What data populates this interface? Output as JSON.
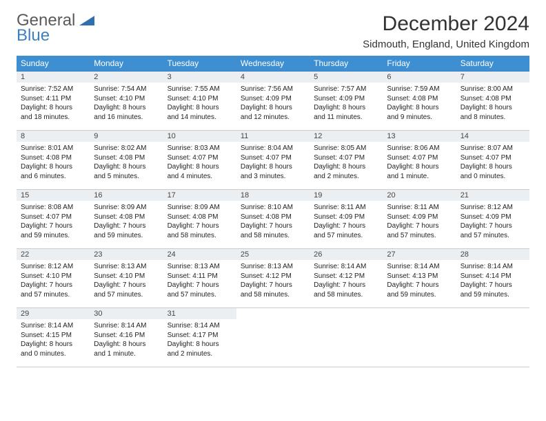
{
  "brand": {
    "part1": "General",
    "part2": "Blue"
  },
  "title": "December 2024",
  "location": "Sidmouth, England, United Kingdom",
  "colors": {
    "header_bg": "#3d8fd1",
    "header_text": "#ffffff",
    "row_border": "#3d7fbf",
    "daynum_bg": "#eceff1",
    "brand_gray": "#5a5a5a",
    "brand_blue": "#3d7fbf"
  },
  "day_headers": [
    "Sunday",
    "Monday",
    "Tuesday",
    "Wednesday",
    "Thursday",
    "Friday",
    "Saturday"
  ],
  "weeks": [
    [
      {
        "n": "1",
        "sr": "7:52 AM",
        "ss": "4:11 PM",
        "dl": "8 hours and 18 minutes."
      },
      {
        "n": "2",
        "sr": "7:54 AM",
        "ss": "4:10 PM",
        "dl": "8 hours and 16 minutes."
      },
      {
        "n": "3",
        "sr": "7:55 AM",
        "ss": "4:10 PM",
        "dl": "8 hours and 14 minutes."
      },
      {
        "n": "4",
        "sr": "7:56 AM",
        "ss": "4:09 PM",
        "dl": "8 hours and 12 minutes."
      },
      {
        "n": "5",
        "sr": "7:57 AM",
        "ss": "4:09 PM",
        "dl": "8 hours and 11 minutes."
      },
      {
        "n": "6",
        "sr": "7:59 AM",
        "ss": "4:08 PM",
        "dl": "8 hours and 9 minutes."
      },
      {
        "n": "7",
        "sr": "8:00 AM",
        "ss": "4:08 PM",
        "dl": "8 hours and 8 minutes."
      }
    ],
    [
      {
        "n": "8",
        "sr": "8:01 AM",
        "ss": "4:08 PM",
        "dl": "8 hours and 6 minutes."
      },
      {
        "n": "9",
        "sr": "8:02 AM",
        "ss": "4:08 PM",
        "dl": "8 hours and 5 minutes."
      },
      {
        "n": "10",
        "sr": "8:03 AM",
        "ss": "4:07 PM",
        "dl": "8 hours and 4 minutes."
      },
      {
        "n": "11",
        "sr": "8:04 AM",
        "ss": "4:07 PM",
        "dl": "8 hours and 3 minutes."
      },
      {
        "n": "12",
        "sr": "8:05 AM",
        "ss": "4:07 PM",
        "dl": "8 hours and 2 minutes."
      },
      {
        "n": "13",
        "sr": "8:06 AM",
        "ss": "4:07 PM",
        "dl": "8 hours and 1 minute."
      },
      {
        "n": "14",
        "sr": "8:07 AM",
        "ss": "4:07 PM",
        "dl": "8 hours and 0 minutes."
      }
    ],
    [
      {
        "n": "15",
        "sr": "8:08 AM",
        "ss": "4:07 PM",
        "dl": "7 hours and 59 minutes."
      },
      {
        "n": "16",
        "sr": "8:09 AM",
        "ss": "4:08 PM",
        "dl": "7 hours and 59 minutes."
      },
      {
        "n": "17",
        "sr": "8:09 AM",
        "ss": "4:08 PM",
        "dl": "7 hours and 58 minutes."
      },
      {
        "n": "18",
        "sr": "8:10 AM",
        "ss": "4:08 PM",
        "dl": "7 hours and 58 minutes."
      },
      {
        "n": "19",
        "sr": "8:11 AM",
        "ss": "4:09 PM",
        "dl": "7 hours and 57 minutes."
      },
      {
        "n": "20",
        "sr": "8:11 AM",
        "ss": "4:09 PM",
        "dl": "7 hours and 57 minutes."
      },
      {
        "n": "21",
        "sr": "8:12 AM",
        "ss": "4:09 PM",
        "dl": "7 hours and 57 minutes."
      }
    ],
    [
      {
        "n": "22",
        "sr": "8:12 AM",
        "ss": "4:10 PM",
        "dl": "7 hours and 57 minutes."
      },
      {
        "n": "23",
        "sr": "8:13 AM",
        "ss": "4:10 PM",
        "dl": "7 hours and 57 minutes."
      },
      {
        "n": "24",
        "sr": "8:13 AM",
        "ss": "4:11 PM",
        "dl": "7 hours and 57 minutes."
      },
      {
        "n": "25",
        "sr": "8:13 AM",
        "ss": "4:12 PM",
        "dl": "7 hours and 58 minutes."
      },
      {
        "n": "26",
        "sr": "8:14 AM",
        "ss": "4:12 PM",
        "dl": "7 hours and 58 minutes."
      },
      {
        "n": "27",
        "sr": "8:14 AM",
        "ss": "4:13 PM",
        "dl": "7 hours and 59 minutes."
      },
      {
        "n": "28",
        "sr": "8:14 AM",
        "ss": "4:14 PM",
        "dl": "7 hours and 59 minutes."
      }
    ],
    [
      {
        "n": "29",
        "sr": "8:14 AM",
        "ss": "4:15 PM",
        "dl": "8 hours and 0 minutes."
      },
      {
        "n": "30",
        "sr": "8:14 AM",
        "ss": "4:16 PM",
        "dl": "8 hours and 1 minute."
      },
      {
        "n": "31",
        "sr": "8:14 AM",
        "ss": "4:17 PM",
        "dl": "8 hours and 2 minutes."
      },
      null,
      null,
      null,
      null
    ]
  ],
  "labels": {
    "sunrise": "Sunrise: ",
    "sunset": "Sunset: ",
    "daylight": "Daylight: "
  }
}
